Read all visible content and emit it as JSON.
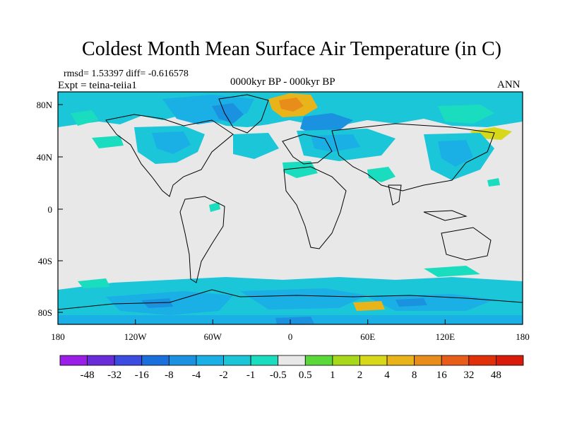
{
  "title": "Coldest Month Mean Surface Air Temperature (in C)",
  "stats": {
    "rmsd_diff": "rmsd= 1.53397 diff= -0.616578",
    "experiment": "Expt = teina-teiia1",
    "period": "0000kyr BP - 000kyr BP",
    "season": "ANN"
  },
  "map": {
    "projection": "cylindrical equidistant",
    "lon_range": [
      -180,
      180
    ],
    "lat_range": [
      -90,
      90
    ],
    "background_color": "#e8e8e8",
    "coastline_color": "#000000",
    "x_tick_labels": [
      "180",
      "120W",
      "60W",
      "0",
      "60E",
      "120E",
      "180"
    ],
    "y_tick_labels": [
      "80N",
      "40N",
      "0",
      "40S",
      "80S"
    ]
  },
  "colorbar": {
    "labels": [
      "-48",
      "-32",
      "-16",
      "-8",
      "-4",
      "-2",
      "-1",
      "-0.5",
      "0.5",
      "1",
      "2",
      "4",
      "8",
      "16",
      "32",
      "48"
    ],
    "colors": [
      "#9a1ee6",
      "#6a2bd9",
      "#3c4be0",
      "#1a6fdc",
      "#1a92e0",
      "#1ab0e6",
      "#1ac6d8",
      "#1adcbe",
      "#e8e8e8",
      "#5ad83a",
      "#a8d81a",
      "#d8d81a",
      "#e8b41a",
      "#e88c1a",
      "#e85c1a",
      "#e0300a",
      "#d81a0a"
    ]
  }
}
